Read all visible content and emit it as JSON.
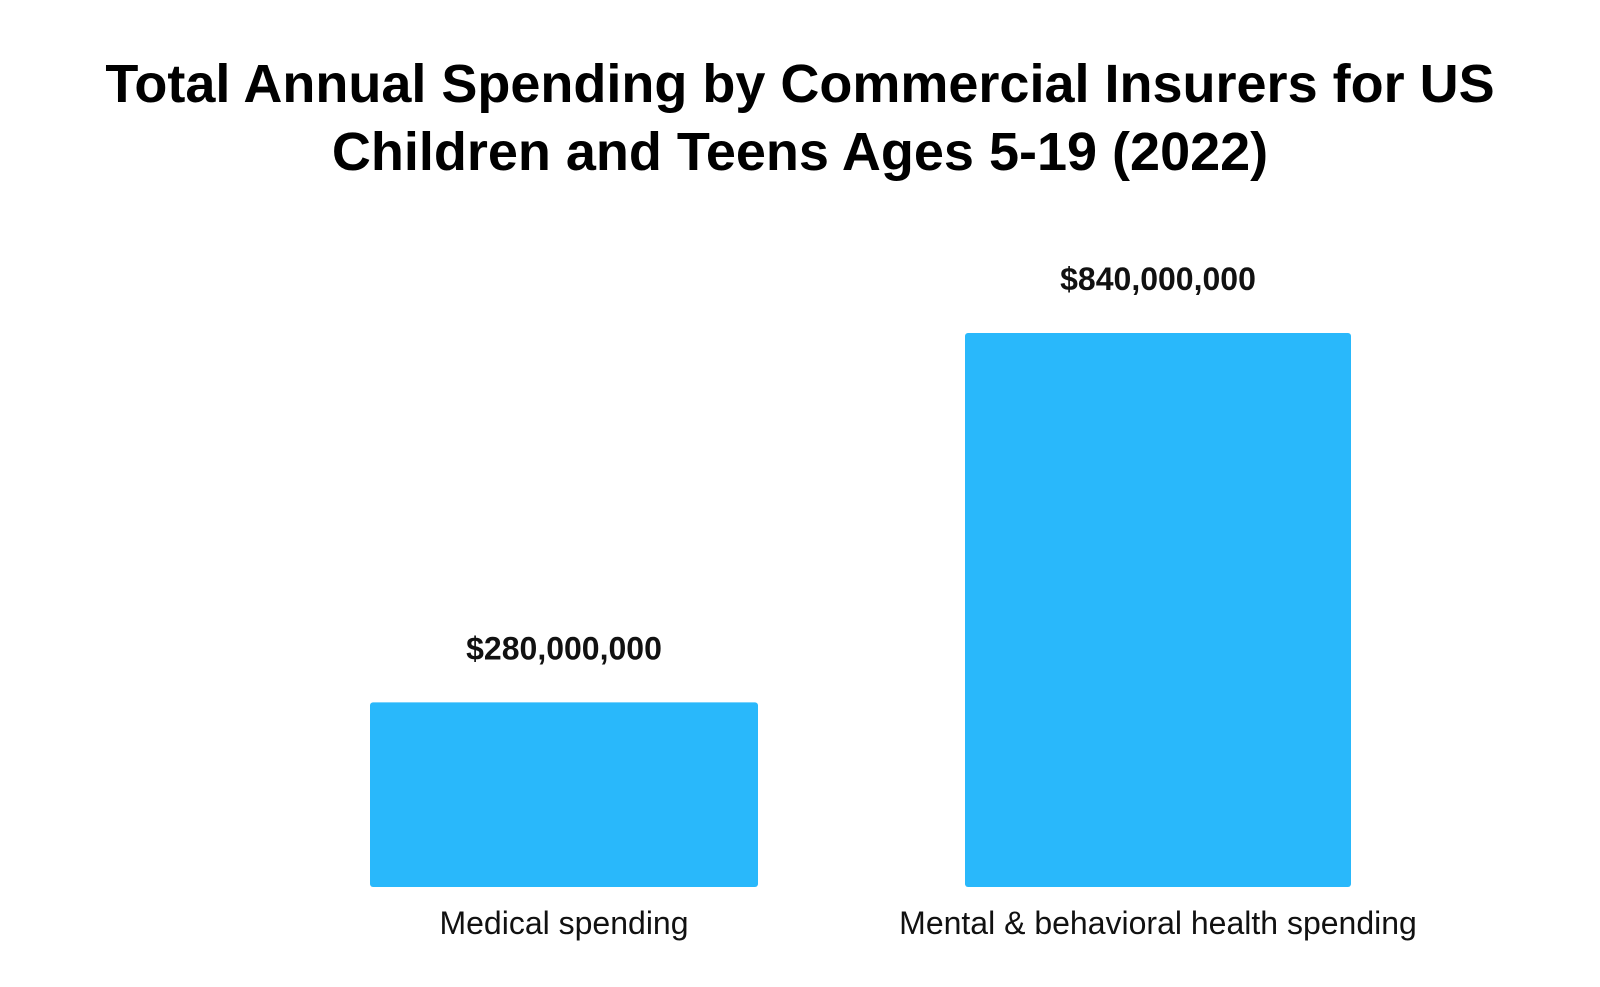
{
  "chart_data": {
    "type": "bar",
    "title_lines": [
      "Total Annual Spending by Commercial Insurers for US",
      "Children and Teens Ages 5-19 (2022)"
    ],
    "categories": [
      "Medical spending",
      "Mental & behavioral health spending"
    ],
    "values": [
      280000000,
      840000000
    ],
    "value_labels": [
      "$280,000,000",
      "$840,000,000"
    ],
    "xlabel": "",
    "ylabel": "",
    "ylim": [
      0,
      840000000
    ],
    "grid": false,
    "legend": "none",
    "bar_color": "#29B8FB"
  }
}
